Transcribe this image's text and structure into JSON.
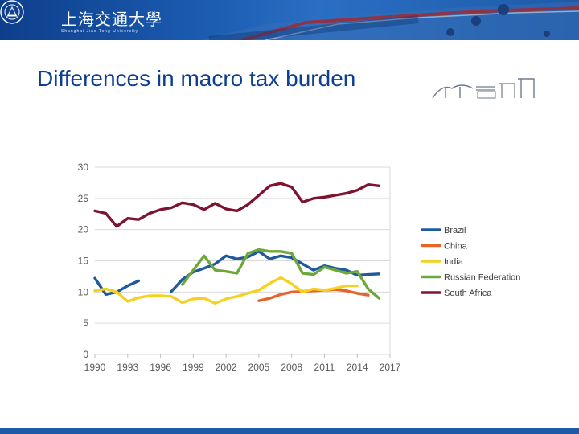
{
  "header": {
    "school_name": "上海交通大學",
    "school_subtitle": "Shanghai Jiao Tong University"
  },
  "slide": {
    "title": "Differences in macro tax burden"
  },
  "colors": {
    "banner": "#1b5bb0",
    "title": "#0d3f8f",
    "brazil": "#1f5a9c",
    "china": "#e8622b",
    "india": "#f5d122",
    "russia": "#6ea73a",
    "south_africa": "#7d1231"
  },
  "chart_data": {
    "type": "line",
    "title": "",
    "xlabel": "",
    "ylabel": "",
    "xlim": [
      1990,
      2017
    ],
    "ylim": [
      0,
      30
    ],
    "x_ticks": [
      1990,
      1993,
      1996,
      1999,
      2002,
      2005,
      2008,
      2011,
      2014,
      2017
    ],
    "y_ticks": [
      0,
      5,
      10,
      15,
      20,
      25,
      30
    ],
    "grid": "horizontal",
    "legend_position": "right",
    "series": [
      {
        "name": "Brazil",
        "color": "#1f5a9c",
        "segments": [
          [
            [
              1990,
              12.2
            ],
            [
              1991,
              9.6
            ],
            [
              1992,
              10.0
            ],
            [
              1993,
              11.0
            ],
            [
              1994,
              11.8
            ]
          ],
          [
            [
              1997,
              10.1
            ],
            [
              1998,
              12.0
            ],
            [
              1999,
              13.2
            ],
            [
              2000,
              13.8
            ],
            [
              2001,
              14.5
            ],
            [
              2002,
              15.8
            ],
            [
              2003,
              15.3
            ],
            [
              2004,
              15.6
            ],
            [
              2005,
              16.5
            ],
            [
              2006,
              15.3
            ],
            [
              2007,
              15.8
            ],
            [
              2008,
              15.5
            ],
            [
              2009,
              14.5
            ],
            [
              2010,
              13.5
            ],
            [
              2011,
              14.2
            ],
            [
              2012,
              13.8
            ],
            [
              2013,
              13.5
            ],
            [
              2014,
              12.7
            ],
            [
              2015,
              12.8
            ],
            [
              2016,
              12.9
            ]
          ]
        ]
      },
      {
        "name": "China",
        "color": "#e8622b",
        "segments": [
          [
            [
              2005,
              8.6
            ],
            [
              2006,
              9.0
            ],
            [
              2007,
              9.6
            ],
            [
              2008,
              10.0
            ],
            [
              2009,
              10.1
            ],
            [
              2010,
              10.2
            ],
            [
              2011,
              10.3
            ],
            [
              2012,
              10.4
            ],
            [
              2013,
              10.2
            ],
            [
              2014,
              9.8
            ],
            [
              2015,
              9.5
            ]
          ]
        ]
      },
      {
        "name": "India",
        "color": "#f5d122",
        "segments": [
          [
            [
              1990,
              10.2
            ],
            [
              1991,
              10.5
            ],
            [
              1992,
              10.0
            ],
            [
              1993,
              8.5
            ],
            [
              1994,
              9.1
            ],
            [
              1995,
              9.4
            ],
            [
              1996,
              9.4
            ],
            [
              1997,
              9.3
            ],
            [
              1998,
              8.3
            ],
            [
              1999,
              8.9
            ],
            [
              2000,
              9.0
            ],
            [
              2001,
              8.2
            ],
            [
              2002,
              8.9
            ],
            [
              2003,
              9.3
            ],
            [
              2004,
              9.8
            ],
            [
              2005,
              10.3
            ],
            [
              2006,
              11.4
            ],
            [
              2007,
              12.3
            ],
            [
              2008,
              11.3
            ],
            [
              2009,
              10.0
            ],
            [
              2010,
              10.5
            ],
            [
              2011,
              10.3
            ],
            [
              2012,
              10.6
            ],
            [
              2013,
              11.0
            ],
            [
              2014,
              11.0
            ]
          ]
        ]
      },
      {
        "name": "Russian Federation",
        "color": "#6ea73a",
        "segments": [
          [
            [
              1998,
              11.2
            ],
            [
              1999,
              13.5
            ],
            [
              2000,
              15.8
            ],
            [
              2001,
              13.5
            ],
            [
              2002,
              13.3
            ],
            [
              2003,
              13.0
            ],
            [
              2004,
              16.2
            ],
            [
              2005,
              16.8
            ],
            [
              2006,
              16.5
            ],
            [
              2007,
              16.5
            ],
            [
              2008,
              16.2
            ],
            [
              2009,
              13.0
            ],
            [
              2010,
              12.8
            ],
            [
              2011,
              14.0
            ],
            [
              2012,
              13.5
            ],
            [
              2013,
              13.0
            ],
            [
              2014,
              13.3
            ],
            [
              2015,
              10.5
            ],
            [
              2016,
              9.0
            ]
          ]
        ]
      },
      {
        "name": "South Africa",
        "color": "#7d1231",
        "segments": [
          [
            [
              1990,
              23.0
            ],
            [
              1991,
              22.6
            ],
            [
              1992,
              20.5
            ],
            [
              1993,
              21.8
            ],
            [
              1994,
              21.6
            ],
            [
              1995,
              22.6
            ],
            [
              1996,
              23.2
            ],
            [
              1997,
              23.5
            ],
            [
              1998,
              24.3
            ],
            [
              1999,
              24.0
            ],
            [
              2000,
              23.2
            ],
            [
              2001,
              24.2
            ],
            [
              2002,
              23.3
            ],
            [
              2003,
              23.0
            ],
            [
              2004,
              24.0
            ],
            [
              2005,
              25.5
            ],
            [
              2006,
              27.0
            ],
            [
              2007,
              27.4
            ],
            [
              2008,
              26.8
            ],
            [
              2009,
              24.4
            ],
            [
              2010,
              25.0
            ],
            [
              2011,
              25.2
            ],
            [
              2012,
              25.5
            ],
            [
              2013,
              25.8
            ],
            [
              2014,
              26.3
            ],
            [
              2015,
              27.2
            ],
            [
              2016,
              27.0
            ]
          ]
        ]
      }
    ]
  }
}
